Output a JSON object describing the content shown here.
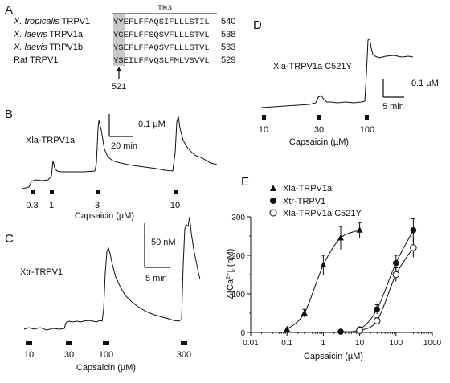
{
  "panelA": {
    "letter": "A",
    "tm_label": "TM3",
    "rows": [
      {
        "species": "X. tropicalis",
        "protein": " TRPV1",
        "italic": true,
        "seq": "YYEFLFFAQSIFLLLSTIL",
        "end": "540"
      },
      {
        "species": "X. laevis",
        "protein": " TRPV1a",
        "italic": true,
        "seq": "YCEFLFFSQSVFLLLSTVL",
        "end": "538"
      },
      {
        "species": "X. laevis",
        "protein": " TRPV1b",
        "italic": true,
        "seq": "YSEFLFFAQSVFLLLSTVL",
        "end": "533"
      },
      {
        "species": "Rat",
        "protein": " TRPV1",
        "italic": false,
        "seq": "YSEILFFVQSLFMLVSVVL",
        "end": "529"
      }
    ],
    "arrow_label": "521"
  },
  "panelB": {
    "letter": "B",
    "construct": "Xla-TRPV1a",
    "scale_y": "0.1 µM",
    "scale_x": "20 min",
    "doses": [
      "0.3",
      "1",
      "3",
      "10"
    ],
    "axis_label": "Capsaicin (µM)"
  },
  "panelC": {
    "letter": "C",
    "construct": "Xtr-TRPV1",
    "scale_y": "50 nM",
    "scale_x": "5 min",
    "doses": [
      "10",
      "30",
      "100",
      "300"
    ],
    "axis_label": "Capsaicin  (µM)"
  },
  "panelD": {
    "letter": "D",
    "construct": "Xla-TRPV1a C521Y",
    "scale_y": "0.1 µM",
    "scale_x": "5 min",
    "doses": [
      "10",
      "30",
      "100"
    ],
    "axis_label": "Capsaicin  (µM)"
  },
  "chart_data": {
    "type": "scatter",
    "panel_letter": "E",
    "xlabel": "Capsaicin  (µM)",
    "ylabel_main": "Δ[Ca",
    "ylabel_sup": "2+",
    "ylabel_sub": "i",
    "ylabel_end": " (nM)",
    "x_scale": "log",
    "xlim": [
      0.01,
      1000
    ],
    "ylim": [
      0,
      300
    ],
    "x_ticks": [
      "0.01",
      "0.1",
      "1",
      "10",
      "100",
      "1000"
    ],
    "x_tick_values": [
      0.01,
      0.1,
      1,
      10,
      100,
      1000
    ],
    "y_ticks": [
      "0",
      "100",
      "200",
      "300"
    ],
    "y_tick_values": [
      0,
      100,
      200,
      300
    ],
    "legend_position": "top-left",
    "series": [
      {
        "name": "Xla-TRPV1a",
        "marker": "triangle",
        "x": [
          0.1,
          0.3,
          1,
          3,
          10
        ],
        "y": [
          8,
          50,
          175,
          245,
          265
        ],
        "err": [
          3,
          10,
          25,
          30,
          20
        ]
      },
      {
        "name": "Xtr-TRPV1",
        "marker": "circle-filled",
        "x": [
          3,
          10,
          30,
          100,
          300
        ],
        "y": [
          2,
          8,
          60,
          180,
          265
        ],
        "err": [
          2,
          3,
          12,
          20,
          30
        ]
      },
      {
        "name": "Xla-TRPV1a C521Y",
        "marker": "circle-open",
        "x": [
          10,
          30,
          100,
          300
        ],
        "y": [
          5,
          30,
          150,
          220
        ],
        "err": [
          2,
          8,
          18,
          25
        ]
      }
    ]
  }
}
